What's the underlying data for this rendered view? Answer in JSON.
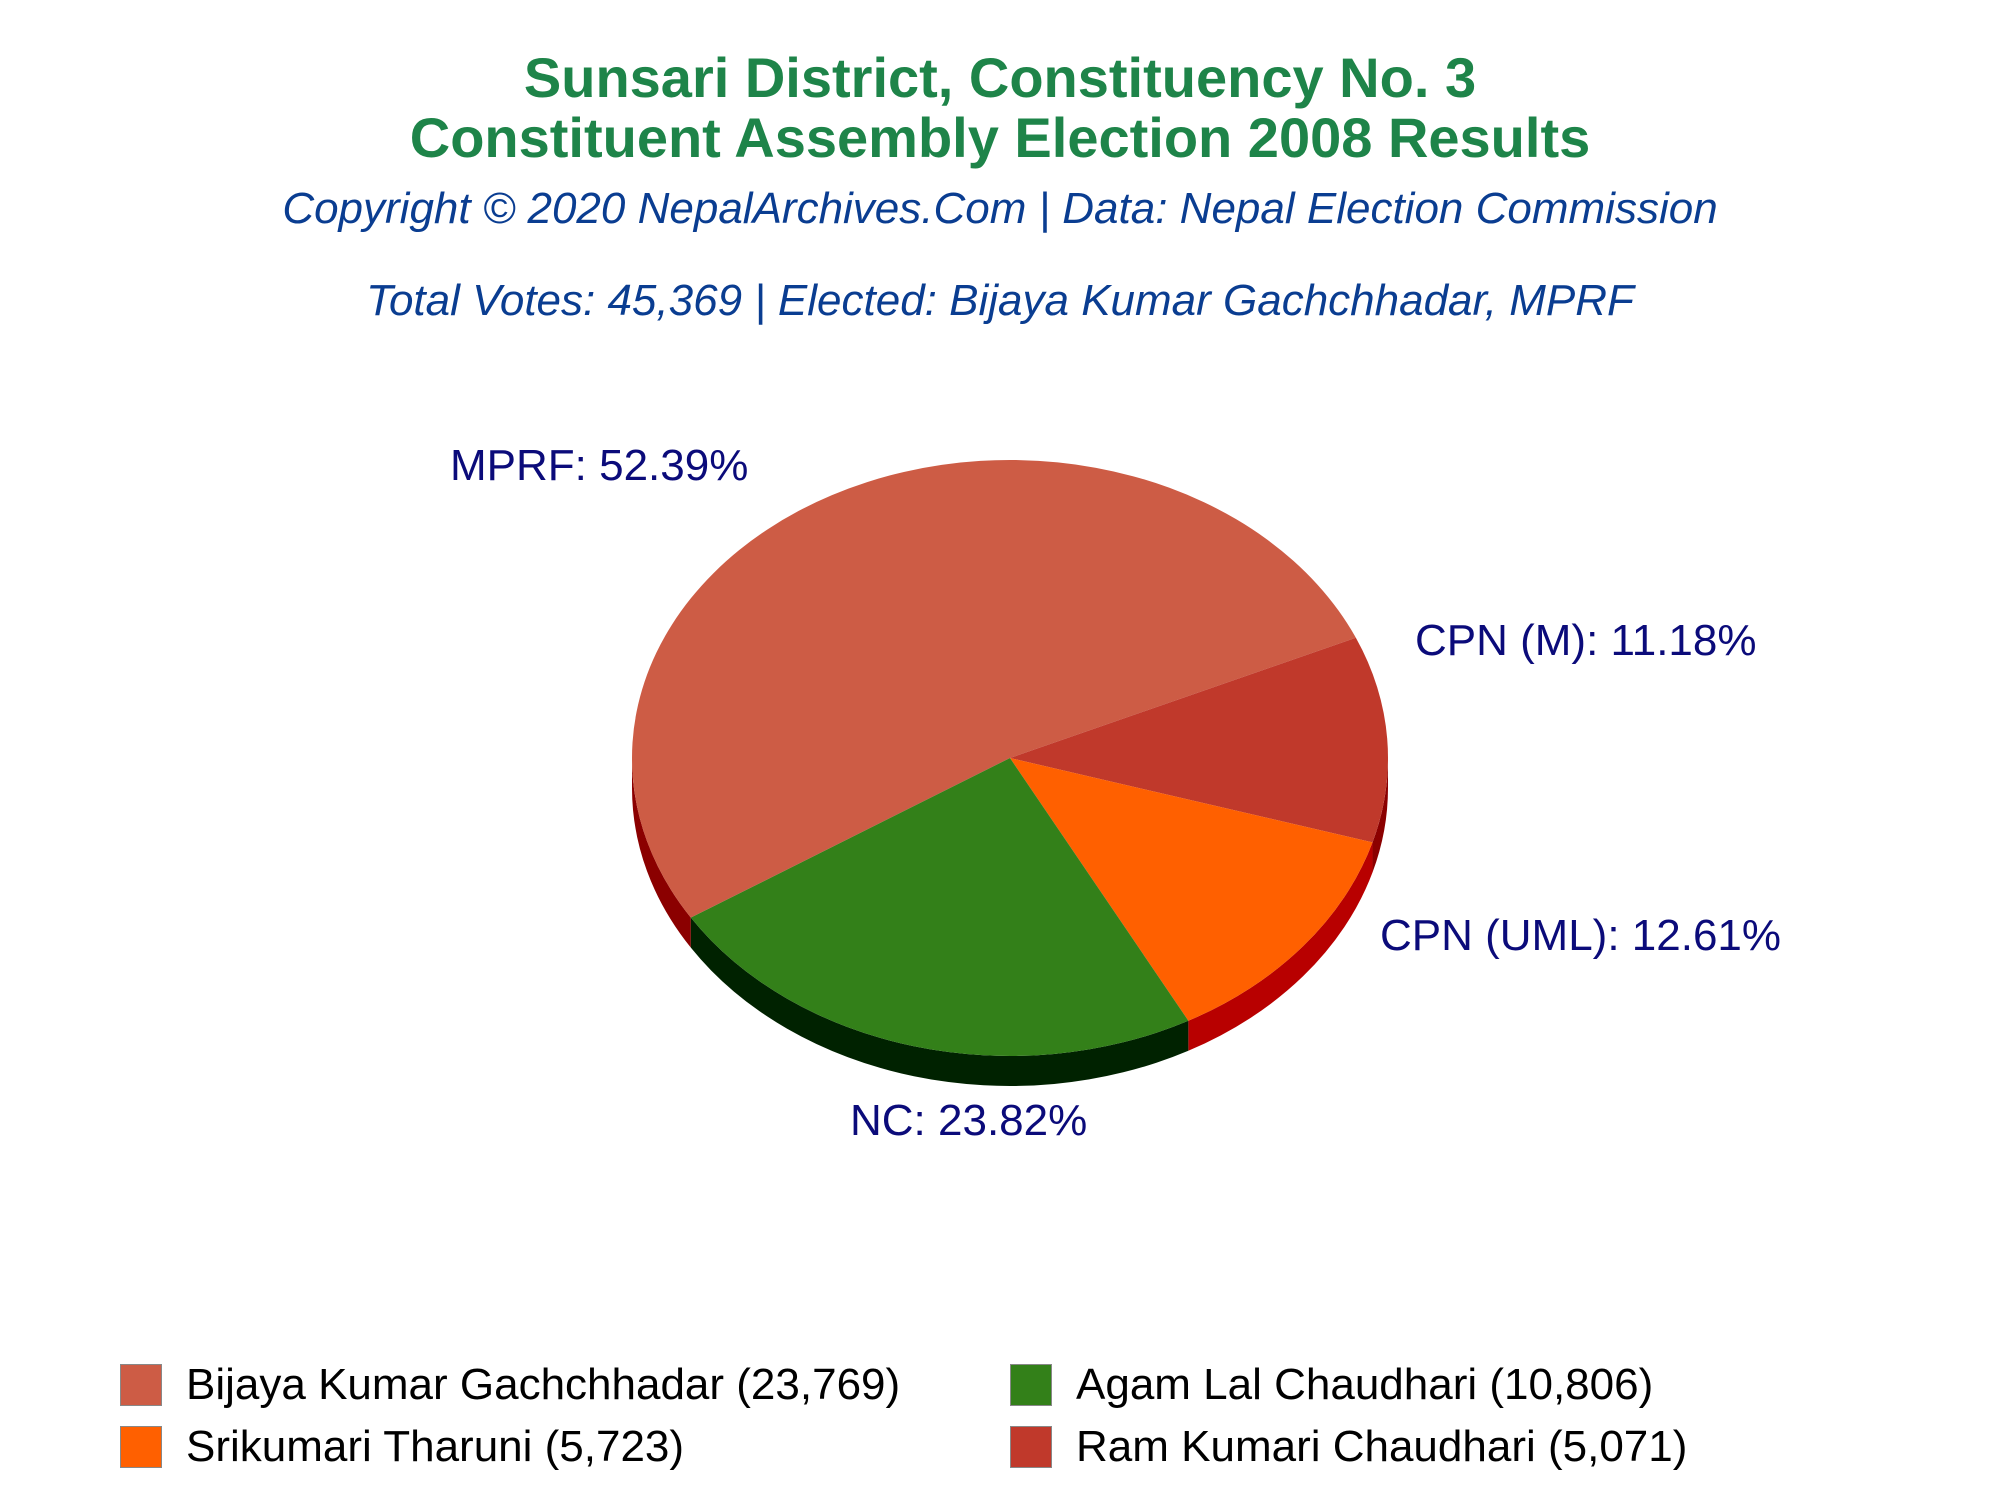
{
  "title_line1": "Sunsari District, Constituency No. 3",
  "title_line2": "Constituent Assembly Election 2008 Results",
  "copyright": "Copyright © 2020 NepalArchives.Com | Data: Nepal Election Commission",
  "summary": "Total Votes: 45,369 | Elected: Bijaya Kumar Gachchhadar, MPRF",
  "chart_data": {
    "type": "pie",
    "categories": [
      "MPRF",
      "CPN (M)",
      "CPN (UML)",
      "NC"
    ],
    "values": [
      52.39,
      11.18,
      12.61,
      23.82
    ],
    "slice_labels": [
      "MPRF: 52.39%",
      "CPN (M): 11.18%",
      "CPN (UML): 12.61%",
      "NC: 23.82%"
    ],
    "colors": [
      "#cd5c45",
      "#c0392b",
      "#ff6000",
      "#338019"
    ],
    "side_colors": [
      "#8b0000",
      "#8b0000",
      "#b80000",
      "#002200"
    ],
    "legend": [
      {
        "label": "Bijaya Kumar Gachchhadar (23,769)",
        "color": "#cd5c45"
      },
      {
        "label": "Agam Lal Chaudhari (10,806)",
        "color": "#338019"
      },
      {
        "label": "Srikumari Tharuni (5,723)",
        "color": "#ff6000"
      },
      {
        "label": "Ram Kumari Chaudhari (5,071)",
        "color": "#c0392b"
      }
    ]
  }
}
